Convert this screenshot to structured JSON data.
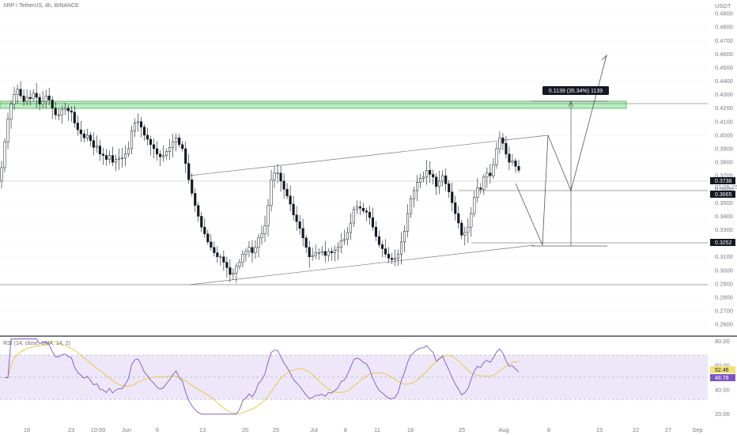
{
  "header": {
    "symbol": "XRP / TetherUS, 4h, BINANCE",
    "currency": "USDT"
  },
  "chart_data": [
    {
      "type": "candlestick",
      "title": "XRP / TetherUS, 4h, BINANCE",
      "y_unit": "USDT",
      "y_ticks": [
        "0.4900",
        "0.4800",
        "0.4700",
        "0.4600",
        "0.4500",
        "0.4400",
        "0.4300",
        "0.4200",
        "0.4100",
        "0.4000",
        "0.3900",
        "0.3800",
        "0.3700",
        "0.3600",
        "0.3500",
        "0.3400",
        "0.3300",
        "0.3200",
        "0.3100",
        "0.3000",
        "0.2900",
        "0.2800",
        "0.2700",
        "0.2600"
      ],
      "ylim": [
        0.2525,
        0.5
      ],
      "x_ticks": [
        "16",
        "23",
        "10:00",
        "Jun",
        "6",
        "13",
        "20",
        "25",
        "Jul",
        "8",
        "11",
        "18",
        "25",
        "Aug",
        "8",
        "15",
        "22",
        "27",
        "Sep"
      ],
      "last_price": "0.3738",
      "countdown": "01:05:15",
      "level_labels": [
        "0.3665",
        "0.3252"
      ],
      "measure_label": "0.1139 (35.34%) 1139",
      "closes": [
        0.376,
        0.395,
        0.412,
        0.423,
        0.43,
        0.434,
        0.429,
        0.425,
        0.428,
        0.427,
        0.431,
        0.428,
        0.423,
        0.425,
        0.429,
        0.426,
        0.42,
        0.415,
        0.415,
        0.419,
        0.42,
        0.418,
        0.417,
        0.409,
        0.404,
        0.401,
        0.398,
        0.4,
        0.396,
        0.391,
        0.392,
        0.386,
        0.385,
        0.382,
        0.385,
        0.38,
        0.382,
        0.383,
        0.383,
        0.386,
        0.39,
        0.403,
        0.409,
        0.41,
        0.406,
        0.4,
        0.397,
        0.393,
        0.39,
        0.386,
        0.384,
        0.385,
        0.388,
        0.391,
        0.395,
        0.398,
        0.393,
        0.39,
        0.379,
        0.367,
        0.357,
        0.348,
        0.34,
        0.332,
        0.327,
        0.321,
        0.317,
        0.313,
        0.31,
        0.31,
        0.306,
        0.302,
        0.297,
        0.298,
        0.303,
        0.306,
        0.312,
        0.314,
        0.317,
        0.313,
        0.317,
        0.324,
        0.327,
        0.333,
        0.348,
        0.367,
        0.372,
        0.372,
        0.366,
        0.36,
        0.355,
        0.349,
        0.341,
        0.336,
        0.331,
        0.324,
        0.317,
        0.31,
        0.311,
        0.313,
        0.313,
        0.314,
        0.311,
        0.314,
        0.313,
        0.315,
        0.317,
        0.322,
        0.323,
        0.328,
        0.335,
        0.345,
        0.347,
        0.346,
        0.344,
        0.343,
        0.339,
        0.332,
        0.325,
        0.319,
        0.316,
        0.312,
        0.309,
        0.308,
        0.309,
        0.312,
        0.321,
        0.329,
        0.342,
        0.353,
        0.359,
        0.365,
        0.368,
        0.369,
        0.374,
        0.371,
        0.369,
        0.362,
        0.366,
        0.37,
        0.364,
        0.358,
        0.35,
        0.342,
        0.335,
        0.326,
        0.328,
        0.332,
        0.342,
        0.354,
        0.361,
        0.36,
        0.369,
        0.372,
        0.37,
        0.378,
        0.39,
        0.398,
        0.394,
        0.386,
        0.38,
        0.381,
        0.377,
        0.374
      ],
      "sma_overlay_note": "",
      "rsi": {
        "label": "RSI (14, close, SMA, 14, 2)",
        "last_rsi": "52.46",
        "last_sma": "48.78",
        "y_ticks": [
          "80.00",
          "60.00",
          "40.00",
          "20.00"
        ],
        "ylim": [
          17,
          83
        ],
        "band": [
          30,
          70
        ],
        "mid": 50
      }
    }
  ]
}
